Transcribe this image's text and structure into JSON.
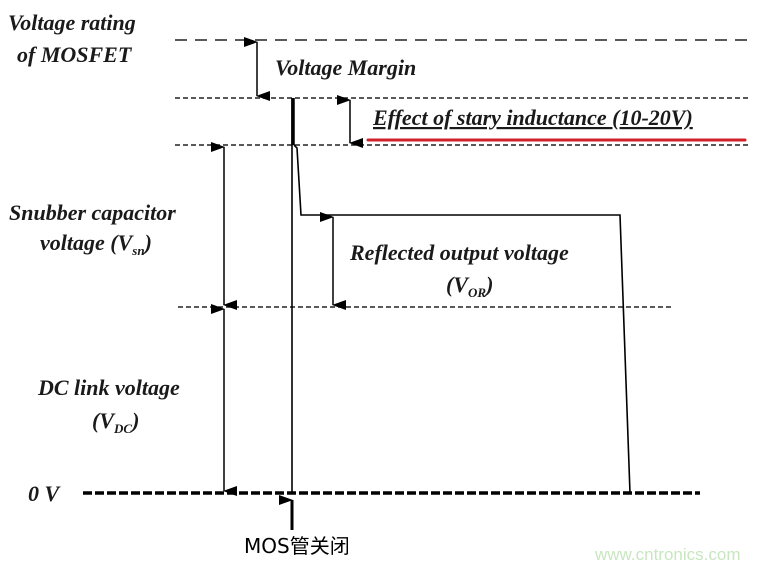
{
  "labels": {
    "rating_line1": "Voltage rating",
    "rating_line2": "of MOSFET",
    "margin": "Voltage Margin",
    "stray": "Effect of stary inductance (10-20V)",
    "snubber_line1": "Snubber capacitor",
    "snubber_line2": "voltage (V",
    "snubber_sub": "sn",
    "reflected_line1": "Reflected output voltage",
    "reflected_open": "(V",
    "reflected_sub": "OR",
    "dc_line1": "DC link voltage",
    "dc_open": "(V",
    "dc_sub": "DC",
    "close_paren": ")",
    "zero": "0 V",
    "mos_off": "MOS管关闭"
  },
  "watermark": "www.cntronics.com",
  "colors": {
    "underline": "#d0202a",
    "line": "#000000",
    "watermark": "#c8e6c0"
  }
}
